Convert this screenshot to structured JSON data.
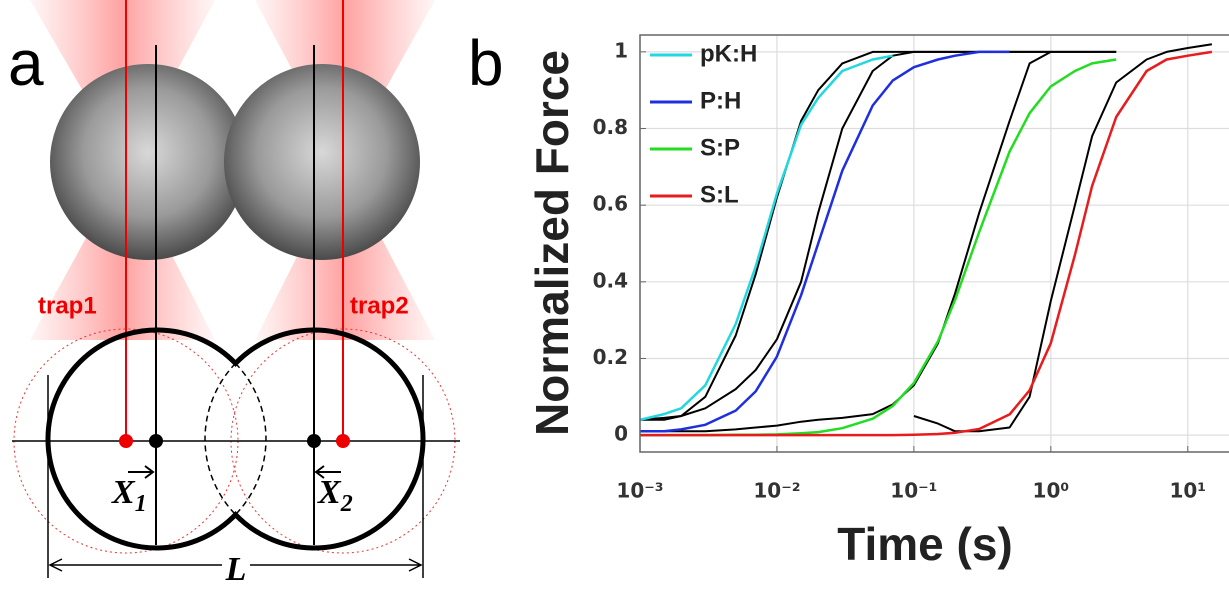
{
  "panel_labels": [
    "a",
    "b"
  ],
  "diagram": {
    "trap_labels": [
      "trap1",
      "trap2"
    ],
    "x1_label": "X",
    "x1_sub": "1",
    "x2_label": "X",
    "x2_sub": "2",
    "length_label": "L"
  },
  "chart_data": {
    "type": "line",
    "xlabel": "Time (s)",
    "ylabel": "Normalized Force",
    "log_x": true,
    "grid": true,
    "legend": "upper left",
    "x": [
      0.001,
      0.0015,
      0.002,
      0.003,
      0.005,
      0.007,
      0.01,
      0.015,
      0.02,
      0.03,
      0.05,
      0.07,
      0.1,
      0.15,
      0.2,
      0.3,
      0.5,
      0.7,
      1,
      1.5,
      2,
      3,
      5,
      7,
      10,
      15
    ],
    "xlim": [
      0.001,
      20
    ],
    "xticks": [
      {
        "value": 0.001,
        "label": "10⁻³"
      },
      {
        "value": 0.01,
        "label": "10⁻²"
      },
      {
        "value": 0.1,
        "label": "10⁻¹"
      },
      {
        "value": 1,
        "label": "10⁰"
      },
      {
        "value": 10,
        "label": "10¹"
      }
    ],
    "ylim": [
      -0.044,
      1.044
    ],
    "yticks": [
      0,
      0.2,
      0.4,
      0.6,
      0.8,
      1
    ],
    "series": [
      {
        "name": "pK:H",
        "color": "#22d8e0",
        "values": [
          0.04,
          0.055,
          0.07,
          0.13,
          0.29,
          0.44,
          0.63,
          0.81,
          0.88,
          0.95,
          0.98,
          0.99,
          null,
          null,
          null,
          null,
          null,
          null,
          null,
          null,
          null,
          null,
          null,
          null,
          null,
          null
        ]
      },
      {
        "name": "P:H",
        "color": "#1f2fe0",
        "values": [
          0.01,
          0.01,
          0.015,
          0.027,
          0.064,
          0.114,
          0.205,
          0.365,
          0.5,
          0.69,
          0.86,
          0.925,
          0.96,
          0.98,
          0.99,
          1.0,
          1.0,
          null,
          null,
          null,
          null,
          null,
          null,
          null,
          null,
          null
        ]
      },
      {
        "name": "S:P",
        "color": "#22dd22",
        "values": [
          0,
          0,
          0,
          0,
          0.001,
          0.001,
          0.002,
          0.005,
          0.008,
          0.018,
          0.043,
          0.076,
          0.136,
          0.245,
          0.353,
          0.53,
          0.74,
          0.84,
          0.91,
          0.95,
          0.97,
          0.98,
          null,
          null,
          null,
          null
        ]
      },
      {
        "name": "S:L",
        "color": "#e81c1c",
        "values": [
          0,
          0,
          0,
          0,
          0,
          0,
          0,
          0,
          0,
          0,
          0,
          0,
          0.001,
          0.003,
          0.006,
          0.016,
          0.054,
          0.117,
          0.24,
          0.47,
          0.65,
          0.83,
          0.95,
          0.98,
          0.99,
          1.0
        ]
      },
      {
        "color": "#000000",
        "values": [
          0.04,
          0.045,
          0.05,
          0.1,
          0.26,
          0.42,
          0.62,
          0.82,
          0.9,
          0.97,
          1.0,
          1.0,
          1.0,
          1.0,
          1.0,
          1.0,
          1.0,
          1.0,
          1.0,
          null,
          null,
          null,
          null,
          null,
          null,
          null
        ]
      },
      {
        "color": "#000000",
        "values": [
          0.04,
          0.04,
          0.05,
          0.07,
          0.12,
          0.17,
          0.25,
          0.4,
          0.58,
          0.8,
          0.95,
          0.99,
          1.0,
          1.0,
          1.0,
          1.0,
          1.0,
          1.0,
          1.0,
          1.0,
          1.0,
          1.0,
          null,
          null,
          null,
          null
        ]
      },
      {
        "color": "#000000",
        "values": [
          0.01,
          0.01,
          0.01,
          0.01,
          0.015,
          0.02,
          0.025,
          0.035,
          0.04,
          0.045,
          0.055,
          0.08,
          0.13,
          0.24,
          0.37,
          0.58,
          0.82,
          0.97,
          1.0,
          1.0,
          1.0,
          1.0,
          null,
          null,
          null,
          null
        ]
      },
      {
        "color": "#000000",
        "values": [
          null,
          null,
          null,
          null,
          null,
          null,
          null,
          null,
          null,
          null,
          null,
          null,
          0.05,
          0.03,
          0.01,
          0.01,
          0.02,
          0.1,
          0.35,
          0.6,
          0.78,
          0.92,
          0.98,
          1.0,
          1.01,
          1.02
        ]
      }
    ]
  }
}
